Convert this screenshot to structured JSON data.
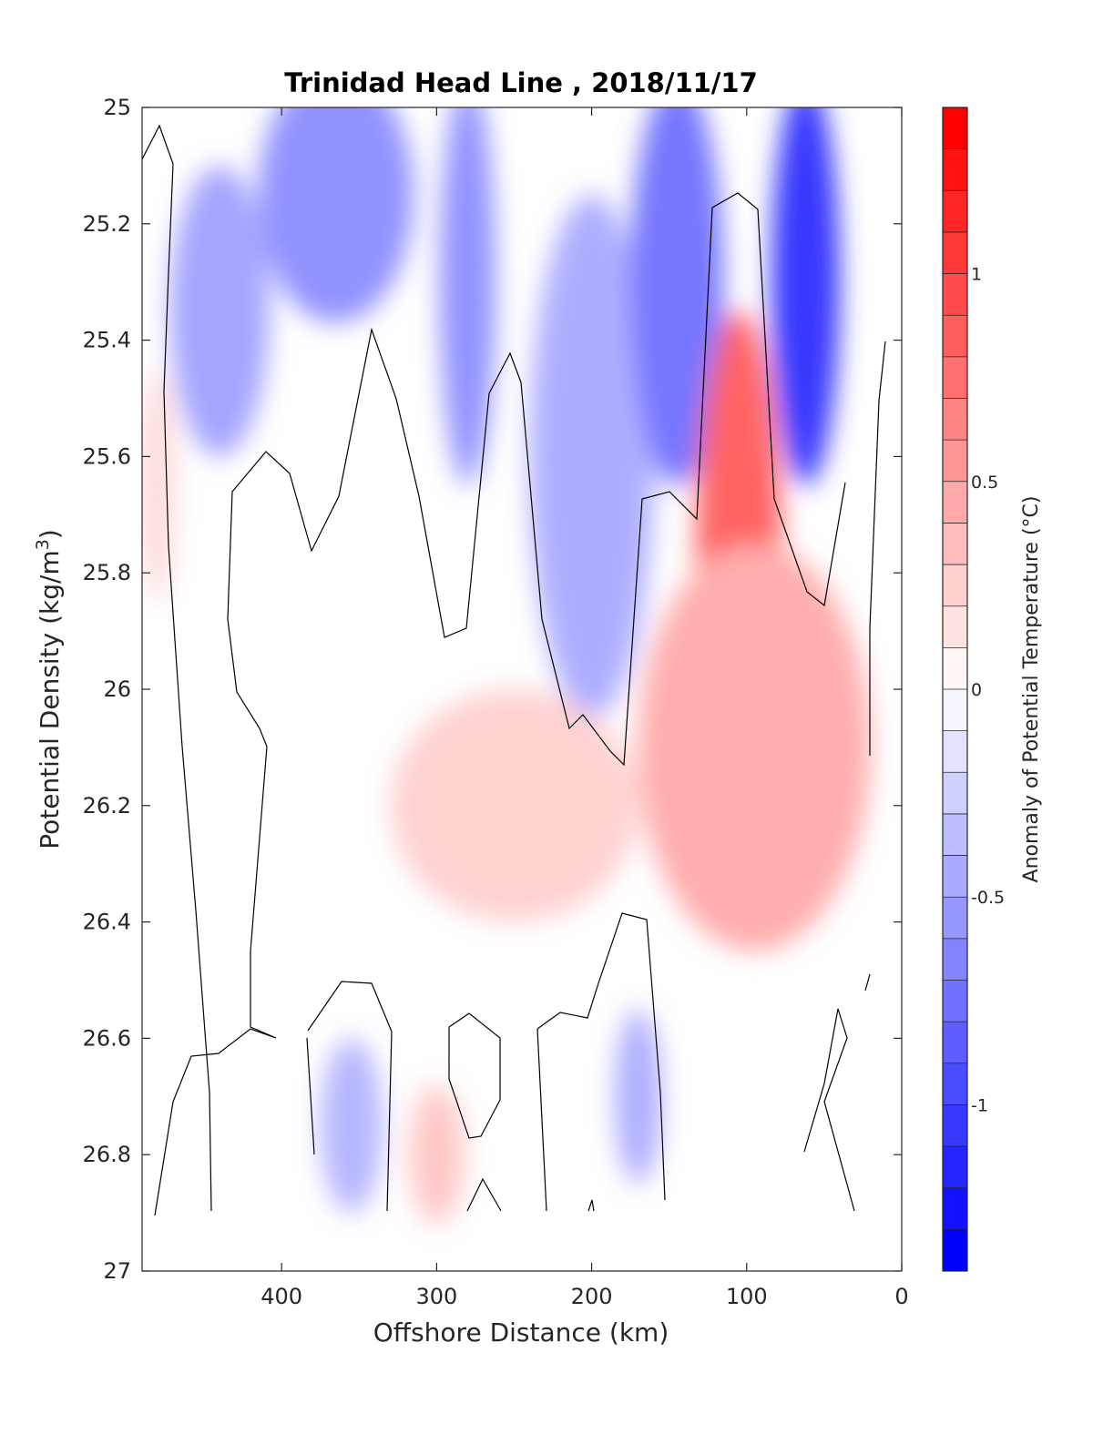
{
  "chart_data": {
    "type": "heatmap",
    "title": "Trinidad Head Line , 2018/11/17",
    "xlabel": "Offshore Distance (km)",
    "ylabel": "Potential Density (kg/m",
    "ylabel_sup": "3",
    "ylabel_tail": ")",
    "colorbar_label": "Anomaly of Potential Temperature (°C)",
    "x_reversed": true,
    "y_reversed": true,
    "xlim": [
      490,
      0
    ],
    "ylim": [
      25,
      27
    ],
    "xticks": [
      400,
      300,
      200,
      100,
      0
    ],
    "xtick_labels": [
      "400",
      "300",
      "200",
      "100",
      "0"
    ],
    "yticks": [
      25,
      25.2,
      25.4,
      25.6,
      25.8,
      26,
      26.2,
      26.4,
      26.6,
      26.8,
      27
    ],
    "ytick_labels": [
      "25",
      "25.2",
      "25.4",
      "25.6",
      "25.8",
      "26",
      "26.2",
      "26.4",
      "26.6",
      "26.8",
      "27"
    ],
    "colorbar_range": [
      -1.4,
      1.4
    ],
    "colorbar_step": 0.1,
    "colorbar_ticks": [
      1,
      0.5,
      0,
      -0.5,
      -1
    ],
    "colorbar_tick_labels": [
      "1",
      "0.5",
      "0",
      "-0.5",
      "-1"
    ],
    "colormap": {
      "negative": "#0000ff",
      "zero": "#ffffff",
      "positive": "#ff0000"
    },
    "zero_contour_color": "#000000",
    "grid": false,
    "anomaly_features": [
      {
        "kind": "cool",
        "x": 365,
        "y": 25.15,
        "rx": 50,
        "ry": 0.22,
        "value": -0.6
      },
      {
        "kind": "cool",
        "x": 440,
        "y": 25.35,
        "rx": 32,
        "ry": 0.25,
        "value": -0.5
      },
      {
        "kind": "cool",
        "x": 280,
        "y": 25.3,
        "rx": 18,
        "ry": 0.35,
        "value": -0.6
      },
      {
        "kind": "cool",
        "x": 200,
        "y": 25.6,
        "rx": 40,
        "ry": 0.45,
        "value": -0.45
      },
      {
        "kind": "cool",
        "x": 145,
        "y": 25.3,
        "rx": 30,
        "ry": 0.35,
        "value": -0.75
      },
      {
        "kind": "cool",
        "x": 62,
        "y": 25.3,
        "rx": 22,
        "ry": 0.35,
        "value": -1.1
      },
      {
        "kind": "cool",
        "x": 355,
        "y": 26.75,
        "rx": 20,
        "ry": 0.15,
        "value": -0.4
      },
      {
        "kind": "cool",
        "x": 170,
        "y": 26.7,
        "rx": 15,
        "ry": 0.15,
        "value": -0.45
      },
      {
        "kind": "warm",
        "x": 105,
        "y": 25.8,
        "rx": 28,
        "ry": 0.45,
        "value": 0.85
      },
      {
        "kind": "warm",
        "x": 95,
        "y": 26.1,
        "rx": 75,
        "ry": 0.35,
        "value": 0.45
      },
      {
        "kind": "warm",
        "x": 250,
        "y": 26.2,
        "rx": 80,
        "ry": 0.2,
        "value": 0.25
      },
      {
        "kind": "warm",
        "x": 300,
        "y": 26.8,
        "rx": 18,
        "ry": 0.12,
        "value": 0.3
      },
      {
        "kind": "warm",
        "x": 480,
        "y": 25.65,
        "rx": 12,
        "ry": 0.2,
        "value": 0.2
      }
    ]
  }
}
